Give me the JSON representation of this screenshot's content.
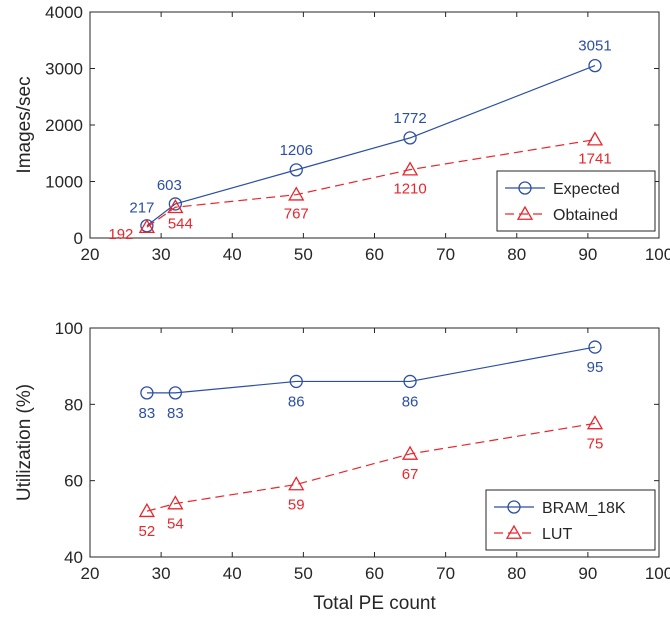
{
  "chart_data": [
    {
      "type": "line",
      "ylabel": "Images/sec",
      "xlabel": "",
      "xlim": [
        20,
        100
      ],
      "ylim": [
        0,
        4000
      ],
      "xticks": [
        20,
        30,
        40,
        50,
        60,
        70,
        80,
        90,
        100
      ],
      "yticks": [
        0,
        1000,
        2000,
        3000,
        4000
      ],
      "legend_position": "bottom-right",
      "series": [
        {
          "name": "Expected",
          "color": "#2c4fa3",
          "marker": "circle",
          "dash": "solid",
          "x": [
            28,
            32,
            49,
            65,
            91
          ],
          "y": [
            217,
            603,
            1206,
            1772,
            3051
          ],
          "labels": [
            "217",
            "603",
            "1206",
            "1772",
            "3051"
          ]
        },
        {
          "name": "Obtained",
          "color": "#e8262b",
          "marker": "triangle",
          "dash": "dashed",
          "x": [
            28,
            32,
            49,
            65,
            91
          ],
          "y": [
            192,
            544,
            767,
            1210,
            1741
          ],
          "labels": [
            "192",
            "544",
            "767",
            "1210",
            "1741"
          ]
        }
      ]
    },
    {
      "type": "line",
      "ylabel": "Utilization (%)",
      "xlabel": "Total PE count",
      "xlim": [
        20,
        100
      ],
      "ylim": [
        40,
        100
      ],
      "xticks": [
        20,
        30,
        40,
        50,
        60,
        70,
        80,
        90,
        100
      ],
      "yticks": [
        40,
        60,
        80,
        100
      ],
      "legend_position": "bottom-right",
      "series": [
        {
          "name": "BRAM_18K",
          "color": "#2c4fa3",
          "marker": "circle",
          "dash": "solid",
          "x": [
            28,
            32,
            49,
            65,
            91
          ],
          "y": [
            83,
            83,
            86,
            86,
            95
          ],
          "labels": [
            "83",
            "83",
            "86",
            "86",
            "95"
          ]
        },
        {
          "name": "LUT",
          "color": "#e8262b",
          "marker": "triangle",
          "dash": "dashed",
          "x": [
            28,
            32,
            49,
            65,
            91
          ],
          "y": [
            52,
            54,
            59,
            67,
            75
          ],
          "labels": [
            "52",
            "54",
            "59",
            "67",
            "75"
          ]
        }
      ]
    }
  ]
}
